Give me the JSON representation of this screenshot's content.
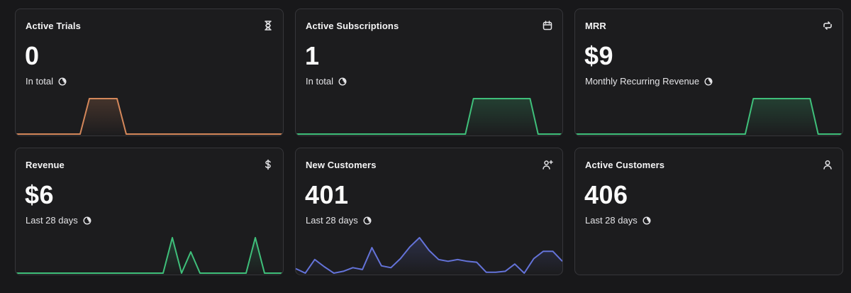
{
  "cards": [
    {
      "title": "Active Trials",
      "value": "0",
      "subtitle": "In total",
      "icon": "hourglass-icon",
      "color": "#d4875a",
      "chart_data": {
        "type": "area",
        "values": [
          0,
          0,
          0,
          0,
          0,
          0,
          0,
          0,
          1,
          1,
          1,
          1,
          0,
          0,
          0,
          0,
          0,
          0,
          0,
          0,
          0,
          0,
          0,
          0,
          0,
          0,
          0,
          0,
          0,
          0
        ]
      }
    },
    {
      "title": "Active Subscriptions",
      "value": "1",
      "subtitle": "In total",
      "icon": "calendar-icon",
      "color": "#3fbf7a",
      "chart_data": {
        "type": "area",
        "values": [
          0,
          0,
          0,
          0,
          0,
          0,
          0,
          0,
          0,
          0,
          0,
          0,
          0,
          0,
          0,
          0,
          0,
          0,
          0,
          0,
          0,
          0,
          1,
          1,
          1,
          1,
          1,
          1,
          1,
          1,
          0,
          0,
          0,
          0
        ]
      }
    },
    {
      "title": "MRR",
      "value": "$9",
      "subtitle": "Monthly Recurring Revenue",
      "icon": "refresh-icon",
      "color": "#3fbf7a",
      "chart_data": {
        "type": "area",
        "values": [
          0,
          0,
          0,
          0,
          0,
          0,
          0,
          0,
          0,
          0,
          0,
          0,
          0,
          0,
          0,
          0,
          0,
          0,
          0,
          0,
          0,
          0,
          1,
          1,
          1,
          1,
          1,
          1,
          1,
          1,
          0,
          0,
          0,
          0
        ]
      }
    },
    {
      "title": "Revenue",
      "value": "$6",
      "subtitle": "Last 28 days",
      "icon": "dollar-icon",
      "color": "#3fbf7a",
      "chart_data": {
        "type": "line",
        "values": [
          0,
          0,
          0,
          0,
          0,
          0,
          0,
          0,
          0,
          0,
          0,
          0,
          0,
          0,
          0,
          0,
          0,
          1,
          0,
          0.6,
          0,
          0,
          0,
          0,
          0,
          0,
          1,
          0,
          0,
          0
        ]
      }
    },
    {
      "title": "New Customers",
      "value": "401",
      "subtitle": "Last 28 days",
      "icon": "user-plus-icon",
      "color": "#6473d9",
      "chart_data": {
        "type": "line",
        "values": [
          12,
          7,
          22,
          14,
          7,
          9,
          13,
          11,
          35,
          15,
          13,
          23,
          36,
          46,
          32,
          22,
          20,
          22,
          20,
          19,
          8,
          8,
          9,
          17,
          7,
          23,
          31,
          31,
          20
        ]
      }
    },
    {
      "title": "Active Customers",
      "value": "406",
      "subtitle": "Last 28 days",
      "icon": "user-icon",
      "color": "#3fbf7a",
      "chart_data": {
        "type": "line",
        "values": []
      }
    }
  ]
}
